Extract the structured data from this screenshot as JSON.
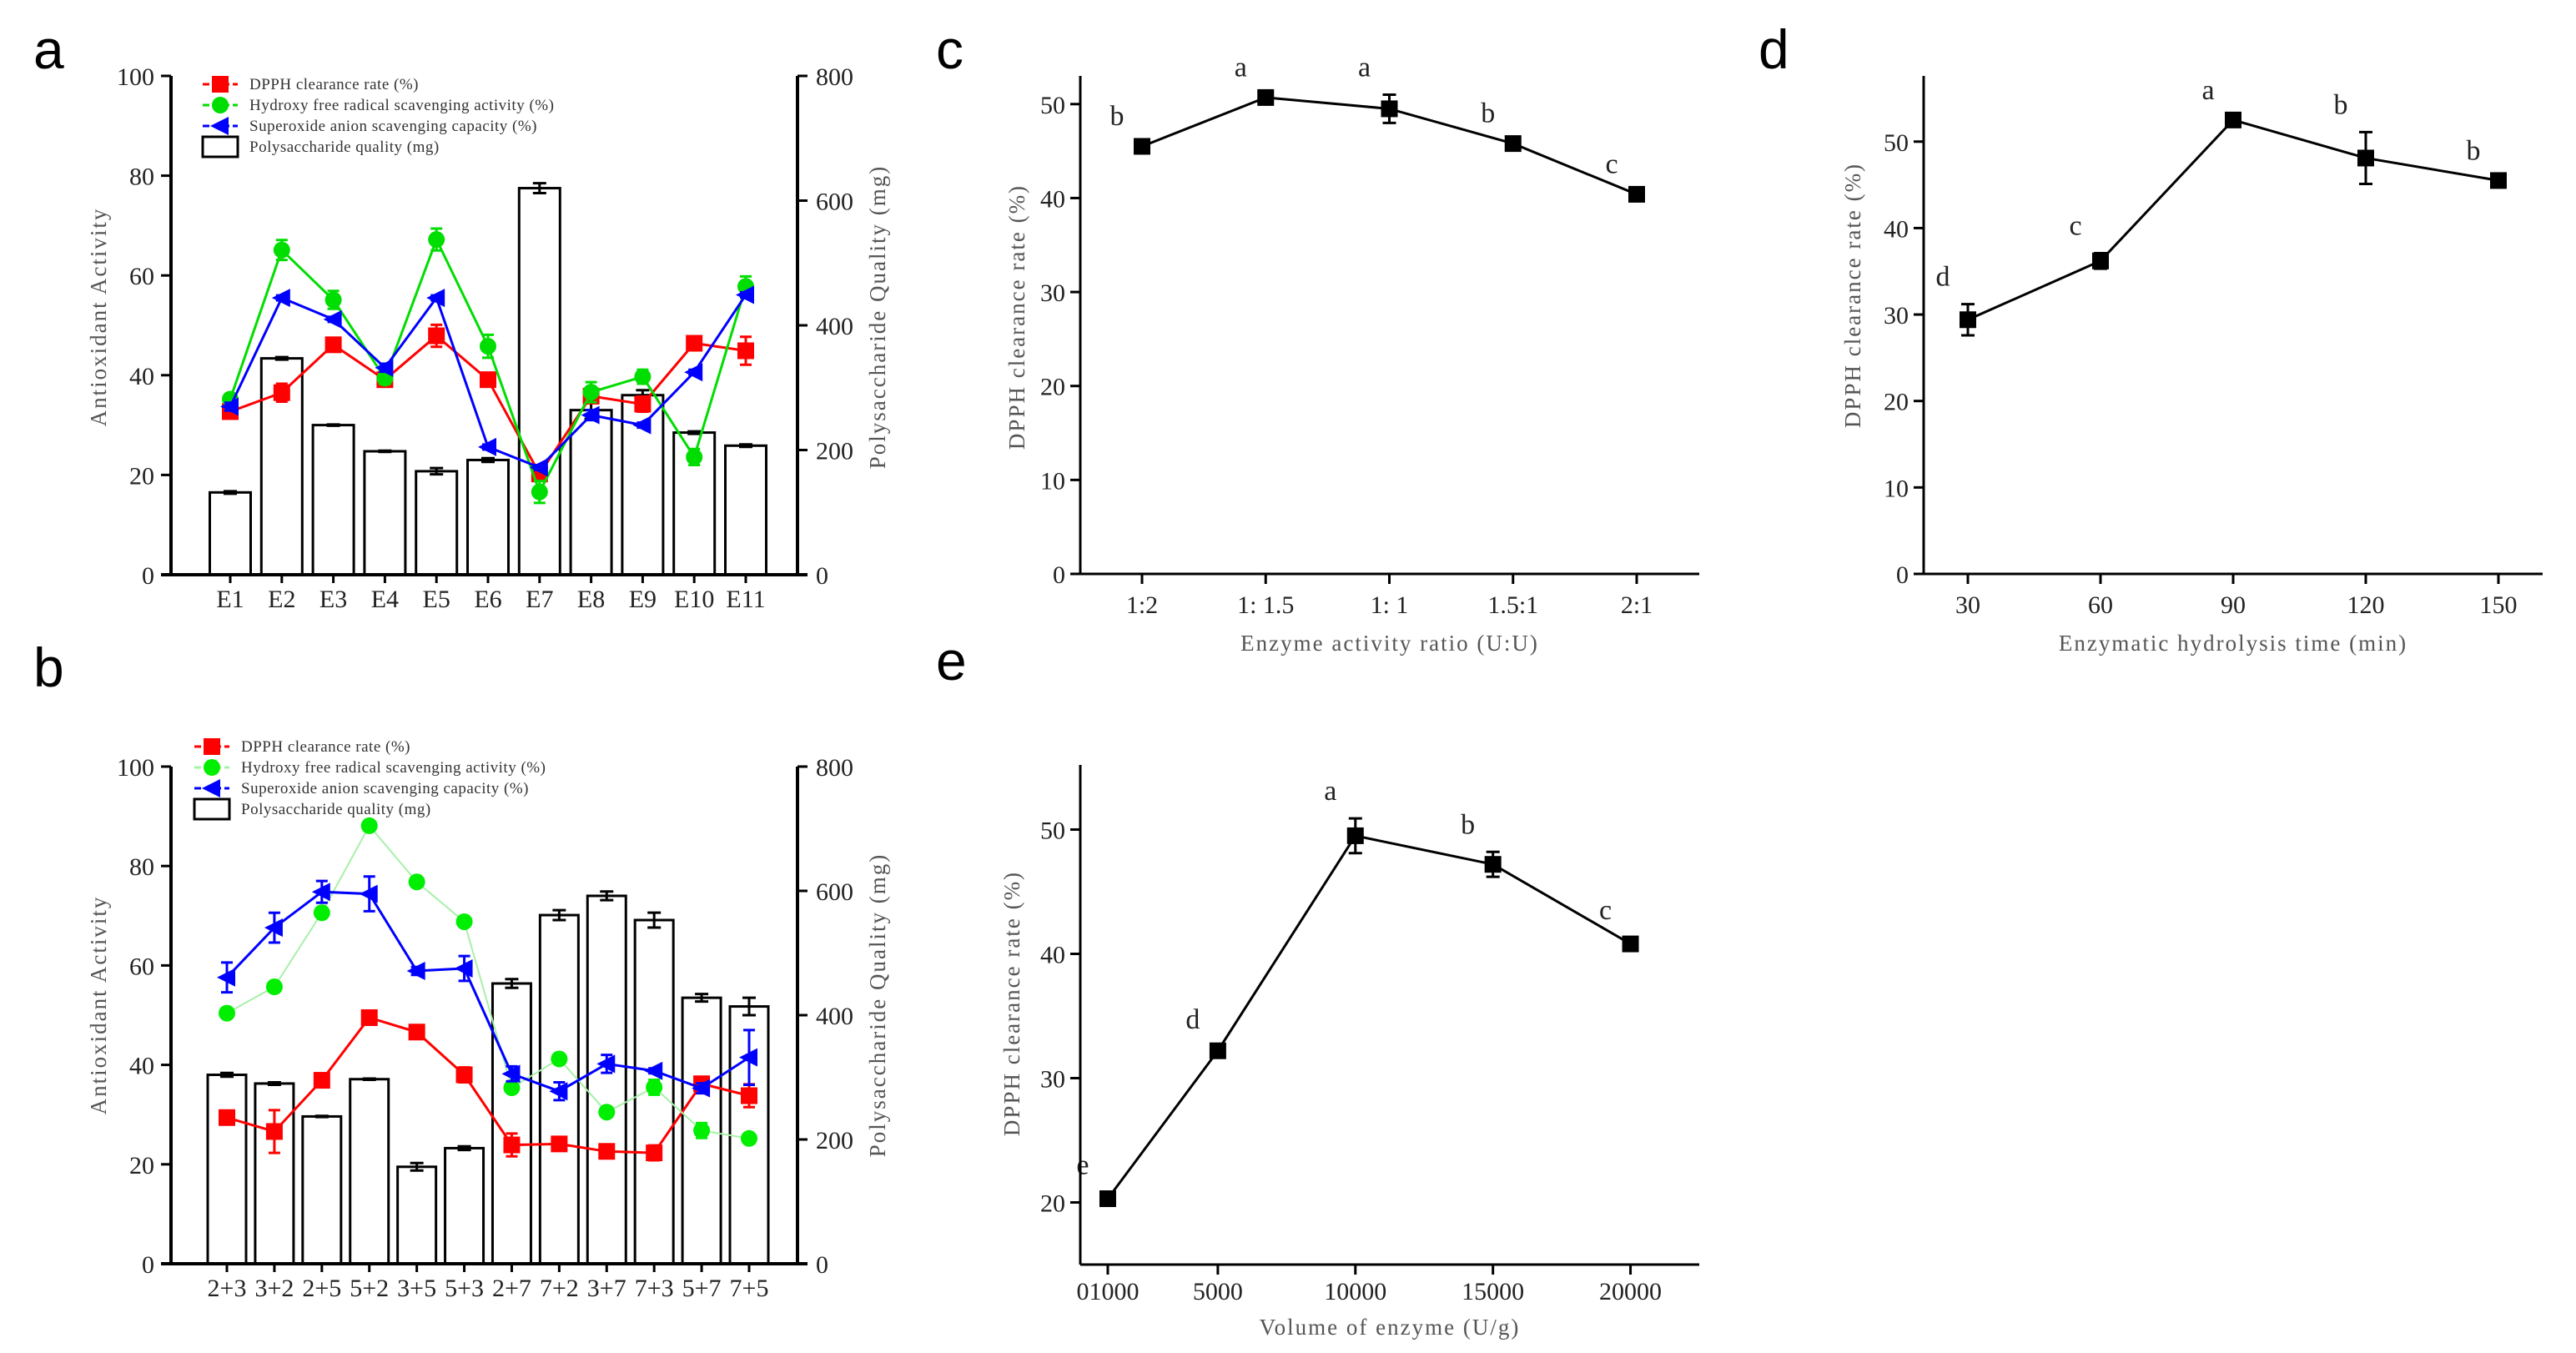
{
  "chart_data": [
    {
      "panel": "a",
      "type": "bar+line",
      "categories": [
        "E1",
        "E2",
        "E3",
        "E4",
        "E5",
        "E6",
        "E7",
        "E8",
        "E9",
        "E10",
        "E11"
      ],
      "ylabel": "Antioxidant Activity",
      "ylabel_right": "Polysaccharide Quality (mg)",
      "ylim": [
        0,
        100
      ],
      "yticks": [
        0,
        20,
        40,
        60,
        80,
        100
      ],
      "ylim_right": [
        0,
        800
      ],
      "yticks_right": [
        0,
        200,
        400,
        600,
        800
      ],
      "legend_placement": "top-left",
      "bars": {
        "name": "Polysaccharide quality (mg)",
        "values": [
          132,
          347,
          240,
          198,
          166,
          184,
          620,
          264,
          288,
          228,
          207
        ],
        "err": [
          2,
          2,
          1,
          1,
          5,
          3,
          8,
          14,
          8,
          2,
          2
        ]
      },
      "series": [
        {
          "name": "DPPH clearance rate (%)",
          "color": "#ff0000",
          "marker": "square",
          "values": [
            32.7,
            36.5,
            46.1,
            39.1,
            47.9,
            39.1,
            20.2,
            35.8,
            34.2,
            46.4,
            44.9
          ],
          "err": [
            0.8,
            1.8,
            1.2,
            1.3,
            2.2,
            0.6,
            0.8,
            1.0,
            1.5,
            1.0,
            2.8
          ]
        },
        {
          "name": "Hydroxy free radical scavenging activity (%)",
          "color": "#00dd00",
          "marker": "circle",
          "values": [
            35.2,
            65.1,
            55.1,
            39.4,
            67.2,
            45.8,
            16.6,
            36.6,
            39.7,
            23.6,
            57.8
          ],
          "err": [
            1.0,
            2.0,
            1.8,
            1.2,
            2.2,
            2.3,
            2.2,
            2.0,
            1.4,
            1.6,
            2.0
          ]
        },
        {
          "name": "Superoxide anion scavenging capacity (%)",
          "color": "#0000ff",
          "marker": "triangle-left",
          "values": [
            33.7,
            55.5,
            51.2,
            41.5,
            55.5,
            25.6,
            21.5,
            32.0,
            30.0,
            40.6,
            56.1
          ],
          "err": [
            0.8,
            0.5,
            0.5,
            0.8,
            0.5,
            0.5,
            0.5,
            1.0,
            0.5,
            0.5,
            0.5
          ]
        }
      ]
    },
    {
      "panel": "b",
      "type": "bar+line",
      "categories": [
        "2+3",
        "3+2",
        "2+5",
        "5+2",
        "3+5",
        "5+3",
        "2+7",
        "7+2",
        "3+7",
        "7+3",
        "5+7",
        "7+5"
      ],
      "ylabel": "Antioxidant Activity",
      "ylabel_right": "Polysaccharide Quality (mg)",
      "ylim": [
        0,
        100
      ],
      "yticks": [
        0,
        20,
        40,
        60,
        80,
        100
      ],
      "ylim_right": [
        0,
        800
      ],
      "yticks_right": [
        0,
        200,
        400,
        600,
        800
      ],
      "legend_placement": "top-left",
      "bars": {
        "name": "Polysaccharide quality (mg)",
        "values": [
          304,
          290,
          237,
          297,
          156,
          186,
          451,
          561,
          592,
          553,
          428,
          414
        ],
        "err": [
          3,
          2,
          1,
          1,
          6,
          3,
          7,
          8,
          7,
          12,
          6,
          14
        ]
      },
      "series": [
        {
          "name": "DPPH clearance rate (%)",
          "color": "#ff0000",
          "marker": "square",
          "values": [
            29.4,
            26.6,
            36.9,
            49.5,
            46.6,
            38.0,
            23.9,
            24.1,
            22.6,
            22.3,
            36.2,
            33.8
          ],
          "err": [
            1.0,
            4.3,
            0.5,
            1.3,
            0.5,
            1.5,
            2.3,
            0.5,
            0.5,
            1.5,
            0.5,
            2.3
          ]
        },
        {
          "name": "Hydroxy free radical scavenging activity (%)",
          "color": "#00ee00",
          "line_color": "#a8f0a8",
          "marker": "circle",
          "values": [
            50.4,
            55.7,
            70.6,
            88.1,
            76.8,
            68.8,
            35.4,
            41.2,
            30.5,
            35.5,
            26.8,
            25.2
          ],
          "err": [
            0.5,
            1.0,
            0.8,
            0.5,
            0.5,
            0.5,
            0.5,
            0.5,
            0.5,
            1.5,
            1.5,
            0.5
          ]
        },
        {
          "name": "Superoxide anion scavenging capacity (%)",
          "color": "#0000ff",
          "marker": "triangle-left",
          "values": [
            57.6,
            67.6,
            74.8,
            74.4,
            58.9,
            59.4,
            38.2,
            34.7,
            40.2,
            38.8,
            35.3,
            41.5
          ],
          "err": [
            3.0,
            3.0,
            2.2,
            3.5,
            0.8,
            2.5,
            1.5,
            1.8,
            1.8,
            0.5,
            1.0,
            5.5
          ]
        }
      ]
    },
    {
      "panel": "c",
      "type": "line",
      "categories": [
        "1:2",
        "1: 1.5",
        "1: 1",
        "1.5:1",
        "2:1"
      ],
      "values": [
        45.5,
        50.7,
        49.5,
        45.8,
        40.4
      ],
      "err": [
        0.3,
        0.3,
        1.5,
        0.3,
        0.3
      ],
      "significance": [
        "b",
        "a",
        "a",
        "b",
        "c"
      ],
      "xlabel": "Enzyme activity ratio (U:U)",
      "ylabel": "DPPH clearance rate (%)",
      "ylim": [
        0,
        53
      ],
      "yticks": [
        0,
        10,
        20,
        30,
        40,
        50
      ]
    },
    {
      "panel": "d",
      "type": "line",
      "x": [
        30,
        60,
        90,
        120,
        150
      ],
      "xtick_labels": [
        "30",
        "60",
        "90",
        "120",
        "150"
      ],
      "values": [
        29.4,
        36.2,
        52.5,
        48.1,
        45.5
      ],
      "err": [
        1.8,
        0.9,
        0.3,
        3.0,
        0.3
      ],
      "significance": [
        "d",
        "c",
        "a",
        "b",
        "b"
      ],
      "xlabel": "Enzymatic hydrolysis time (min)",
      "ylabel": "DPPH clearance rate (%)",
      "xlim": [
        20,
        160
      ],
      "ylim": [
        0,
        57.6
      ],
      "yticks": [
        0,
        10,
        20,
        30,
        40,
        50
      ]
    },
    {
      "panel": "e",
      "type": "line",
      "x": [
        1000,
        5000,
        10000,
        15000,
        20000
      ],
      "xtick_labels": [
        "01000",
        "5000",
        "10000",
        "15000",
        "20000"
      ],
      "values": [
        20.3,
        32.2,
        49.5,
        47.2,
        40.8
      ],
      "err": [
        0.5,
        0.3,
        1.4,
        1.0,
        0.5
      ],
      "significance": [
        "e",
        "d",
        "a",
        "b",
        "c"
      ],
      "xlabel": "Volume of enzyme (U/g)",
      "ylabel": "DPPH clearance rate (%)",
      "xlim": [
        0,
        22500
      ],
      "ylim": [
        15,
        55.2
      ],
      "yticks": [
        20,
        30,
        40,
        50
      ]
    }
  ],
  "panel_labels": [
    "a",
    "b",
    "c",
    "d",
    "e"
  ]
}
